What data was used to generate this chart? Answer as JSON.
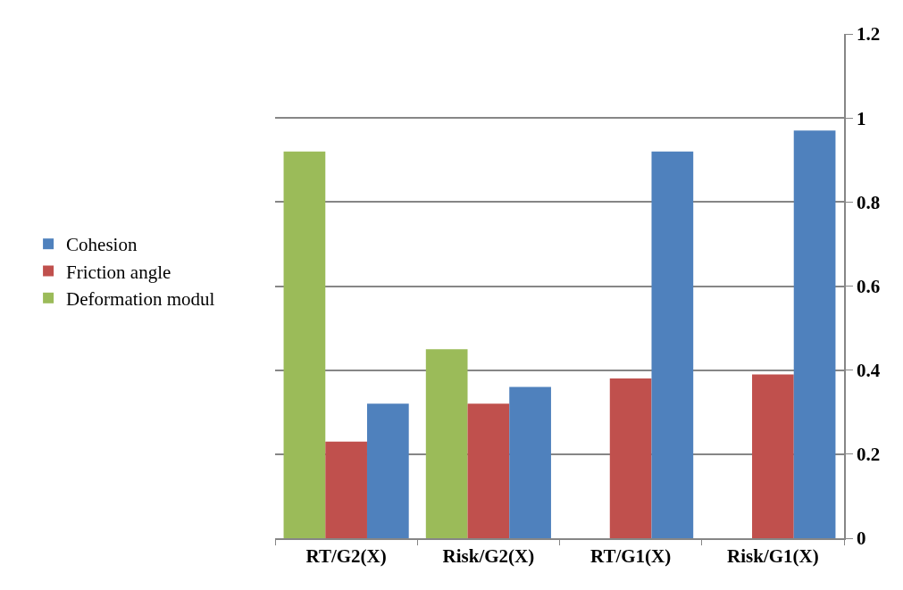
{
  "chart_data": {
    "type": "bar",
    "categories": [
      "RT/G2(X)",
      "Risk/G2(X)",
      "RT/G1(X)",
      "Risk/G1(X)"
    ],
    "series": [
      {
        "name": "Deformation modul",
        "color": "#9bbb59",
        "values": [
          0.92,
          0.45,
          null,
          null
        ]
      },
      {
        "name": "Friction angle",
        "color": "#c0504d",
        "values": [
          0.23,
          0.32,
          0.38,
          0.39
        ]
      },
      {
        "name": "Cohesion",
        "color": "#4f81bd",
        "values": [
          0.32,
          0.36,
          0.92,
          0.97
        ]
      }
    ],
    "ylim": [
      0,
      1.2
    ],
    "yticks": [
      0,
      0.2,
      0.4,
      0.6,
      0.8,
      1,
      1.2
    ],
    "grid": "y",
    "legend": "left"
  }
}
